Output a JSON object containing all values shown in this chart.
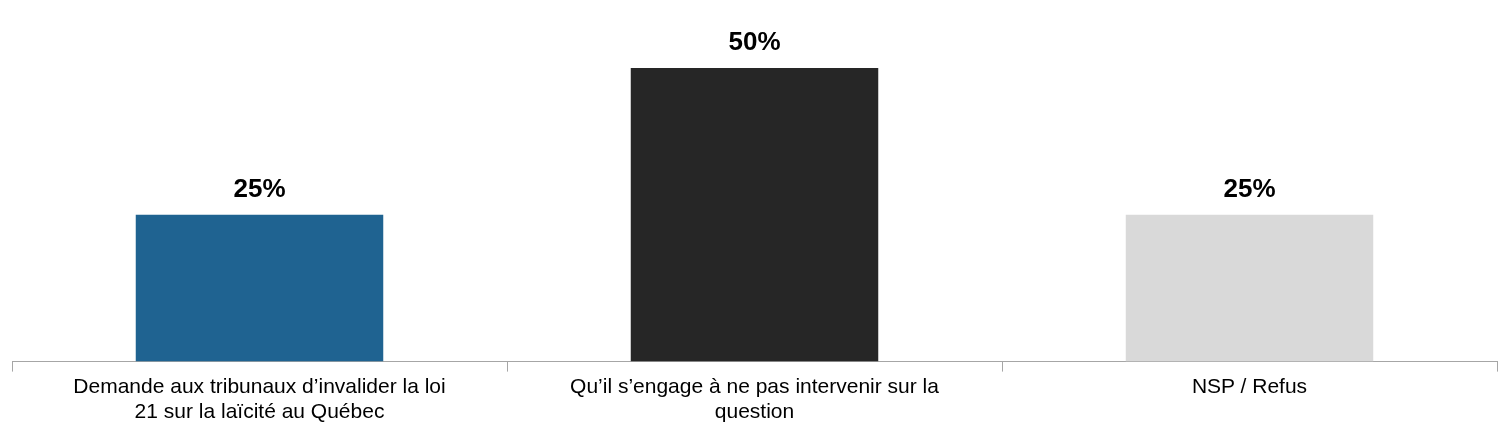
{
  "chart_data": {
    "type": "bar",
    "categories": [
      "Demande aux tribunaux d’invalider la loi 21 sur la laïcité au Québec",
      "Qu’il s’engage à ne pas intervenir sur la question",
      "NSP / Refus"
    ],
    "values": [
      25,
      50,
      25
    ],
    "colors": [
      "#1f6391",
      "#262626",
      "#d9d9d9"
    ],
    "value_labels": [
      "25%",
      "50%",
      "25%"
    ],
    "legend": false,
    "grid": false
  }
}
